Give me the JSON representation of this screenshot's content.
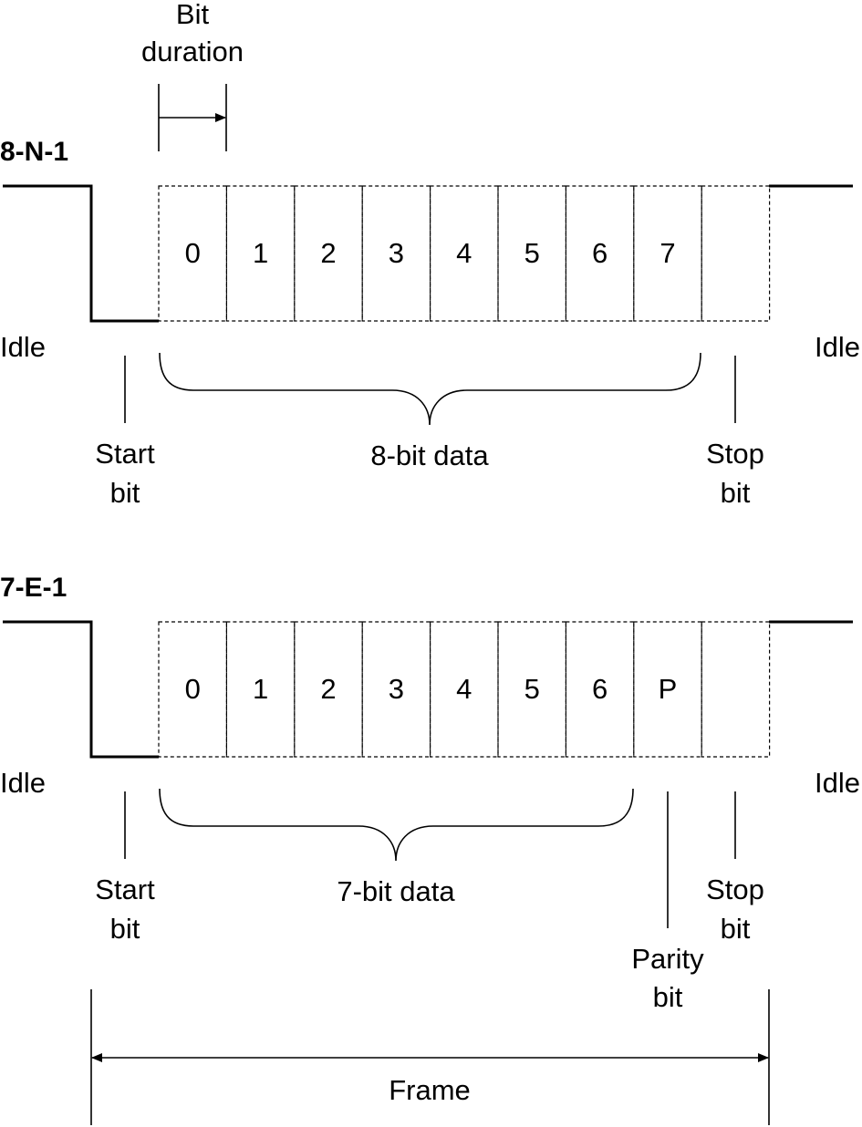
{
  "header": {
    "bit_duration_line1": "Bit",
    "bit_duration_line2": "duration"
  },
  "frame_8n1": {
    "title": "8-N-1",
    "cells": [
      "0",
      "1",
      "2",
      "3",
      "4",
      "5",
      "6",
      "7",
      ""
    ],
    "idle_left": "Idle",
    "idle_right": "Idle",
    "start_line1": "Start",
    "start_line2": "bit",
    "data_label": "8-bit data",
    "stop_line1": "Stop",
    "stop_line2": "bit"
  },
  "frame_7e1": {
    "title": "7-E-1",
    "cells": [
      "0",
      "1",
      "2",
      "3",
      "4",
      "5",
      "6",
      "P",
      ""
    ],
    "idle_left": "Idle",
    "idle_right": "Idle",
    "start_line1": "Start",
    "start_line2": "bit",
    "data_label": "7-bit data",
    "stop_line1": "Stop",
    "stop_line2": "bit",
    "parity_line1": "Parity",
    "parity_line2": "bit"
  },
  "footer": {
    "frame_label": "Frame"
  },
  "colors": {
    "stroke": "#000000",
    "background": "#ffffff"
  }
}
